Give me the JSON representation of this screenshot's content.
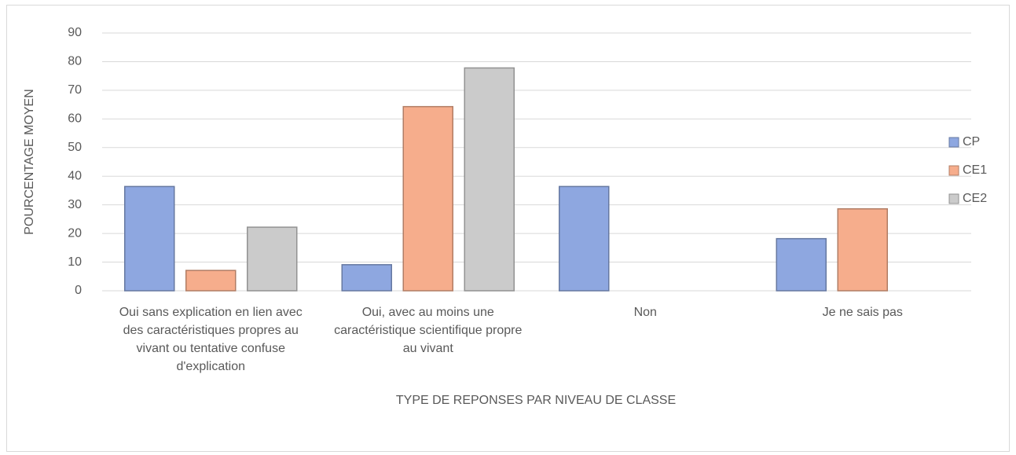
{
  "chart_data": {
    "type": "bar",
    "x_label": "TYPE DE REPONSES PAR NIVEAU DE CLASSE",
    "y_label": "POURCENTAGE MOYEN",
    "categories": [
      "Oui  sans explication en lien avec des caractéristiques propres au vivant ou tentative confuse d'explication",
      "Oui, avec au moins une caractéristique scientifique propre au vivant",
      "Non",
      "Je ne sais pas"
    ],
    "series": [
      {
        "name": "CP",
        "color": "#8ea7e0",
        "values": [
          36.4,
          9.1,
          36.4,
          18.2
        ]
      },
      {
        "name": "CE1",
        "color": "#f6ad8c",
        "values": [
          7.1,
          64.3,
          0,
          28.6
        ]
      },
      {
        "name": "CE2",
        "color": "#cbcbcb",
        "values": [
          22.2,
          77.8,
          0,
          0
        ]
      }
    ],
    "ylim": [
      0,
      90
    ],
    "yticks": [
      0,
      10,
      20,
      30,
      40,
      50,
      60,
      70,
      80,
      90
    ],
    "grid": true,
    "legend": "right"
  }
}
